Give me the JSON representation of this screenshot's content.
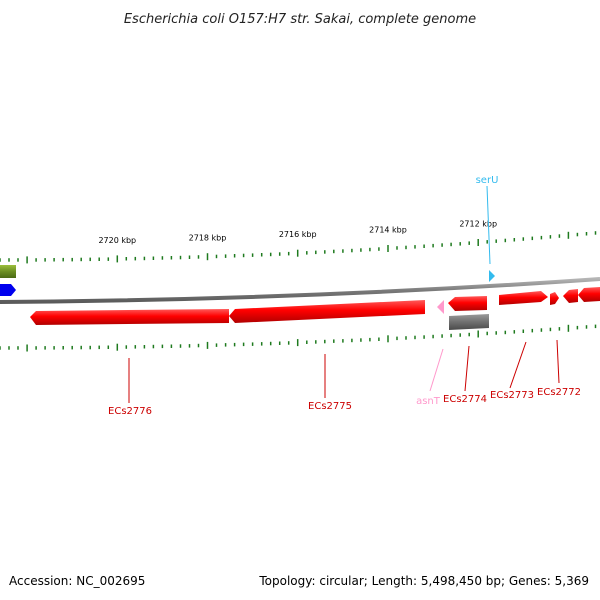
{
  "title": "Escherichia coli O157:H7 str. Sakai, complete genome",
  "footer": {
    "accession": "Accession: NC_002695",
    "summary": "Topology: circular; Length: 5,498,450 bp; Genes: 5,369"
  },
  "colors": {
    "backbone": "#808080",
    "cds": "#ff0000",
    "trna": "#ff99cc",
    "trna_ticks": "#33bbee",
    "grey_feature": "#707070",
    "olive_feature": "#6b8e23",
    "blue_feature": "#0000ee",
    "ticks": "#1e7a1e"
  },
  "chart_data": {
    "type": "genome-map",
    "x_unit": "kbp",
    "x_range": [
      2722.6,
      2709.3
    ],
    "scale_ticks": [
      {
        "value": 2720,
        "label": "2720 kbp"
      },
      {
        "value": 2718,
        "label": "2718 kbp"
      },
      {
        "value": 2716,
        "label": "2716 kbp"
      },
      {
        "value": 2714,
        "label": "2714 kbp"
      },
      {
        "value": 2712,
        "label": "2712 kbp"
      }
    ],
    "features": [
      {
        "name": "ECs2776",
        "type": "CDS",
        "strand": "-",
        "start": 2721.2,
        "end": 2717.7,
        "labeled": true
      },
      {
        "name": "ECs2775",
        "type": "CDS",
        "strand": "-",
        "start": 2717.7,
        "end": 2713.9,
        "labeled": true
      },
      {
        "name": "asnT",
        "type": "tRNA",
        "strand": "-",
        "start": 2713.65,
        "end": 2713.6,
        "labeled": true
      },
      {
        "name": "ECs2774",
        "type": "CDS",
        "strand": "-",
        "start": 2713.4,
        "end": 2712.6,
        "labeled": true
      },
      {
        "name": "ECs2773",
        "type": "CDS",
        "strand": "+",
        "start": 2712.1,
        "end": 2711.1,
        "labeled": true
      },
      {
        "name": "ECs2772",
        "type": "CDS",
        "strand": "+",
        "start": 2711.1,
        "end": 2710.9,
        "labeled": true
      },
      {
        "name": "serU",
        "type": "tRNA",
        "strand": "+",
        "start": 2712.2,
        "end": 2712.15,
        "labeled": true
      },
      {
        "name": "",
        "type": "CDS",
        "strand": "+",
        "start": 2710.8,
        "end": 2710.4,
        "labeled": false
      },
      {
        "name": "",
        "type": "CDS",
        "strand": "+",
        "start": 2710.3,
        "end": 2709.3,
        "labeled": false
      },
      {
        "name": "",
        "type": "gene",
        "strand": "-",
        "start": 2713.4,
        "end": 2712.6,
        "labeled": false
      },
      {
        "name": "",
        "type": "gene",
        "strand": "+",
        "start": 2722.6,
        "end": 2722.3,
        "labeled": false
      },
      {
        "name": "",
        "type": "gene",
        "strand": "+",
        "start": 2722.6,
        "end": 2722.2,
        "labeled": false
      }
    ]
  }
}
